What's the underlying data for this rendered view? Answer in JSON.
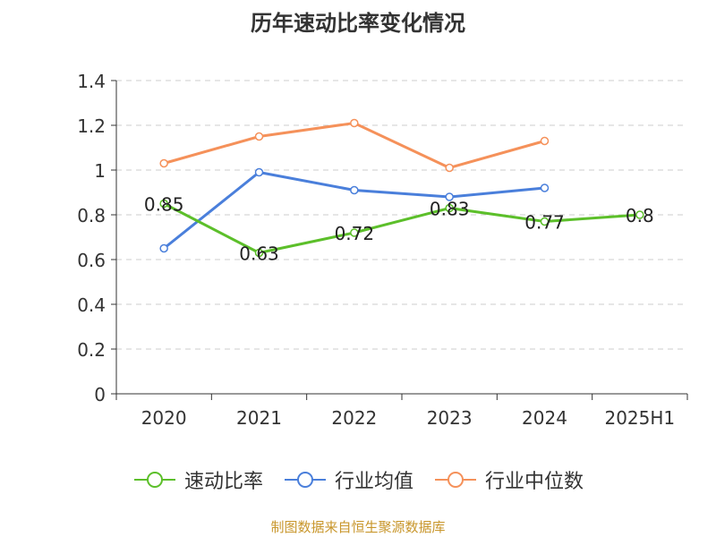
{
  "chart_data": {
    "type": "line",
    "title": "历年速动比率变化情况",
    "categories": [
      "2020",
      "2021",
      "2022",
      "2023",
      "2024",
      "2025H1"
    ],
    "ylim": [
      0,
      1.4
    ],
    "y_ticks": [
      "0",
      "0.2",
      "0.4",
      "0.6",
      "0.8",
      "1",
      "1.2",
      "1.4"
    ],
    "grid": true,
    "legend_position": "bottom",
    "series": [
      {
        "name": "速动比率",
        "color": "#5cbf2a",
        "values": [
          0.85,
          0.63,
          0.72,
          0.83,
          0.77,
          0.8
        ],
        "labels": [
          "0.85",
          "0.63",
          "0.72",
          "0.83",
          "0.77",
          "0.8"
        ]
      },
      {
        "name": "行业均值",
        "color": "#4a7fdb",
        "values": [
          0.65,
          0.99,
          0.91,
          0.88,
          0.92,
          null
        ]
      },
      {
        "name": "行业中位数",
        "color": "#f5915a",
        "values": [
          1.03,
          1.15,
          1.21,
          1.01,
          1.13,
          null
        ]
      }
    ]
  },
  "source_text": "制图数据来自恒生聚源数据库"
}
